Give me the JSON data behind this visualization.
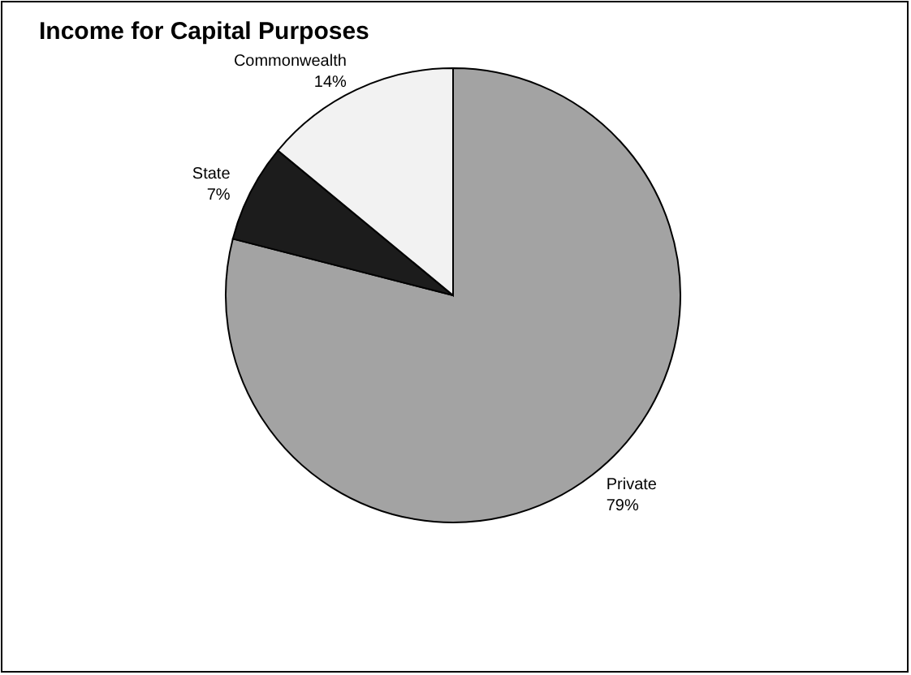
{
  "chart_data": {
    "type": "pie",
    "title": "Income for Capital Purposes",
    "categories": [
      "Private",
      "State",
      "Commonwealth"
    ],
    "values": [
      79,
      7,
      14
    ],
    "value_labels": [
      "79%",
      "7%",
      "14%"
    ],
    "colors": [
      "#a3a3a3",
      "#1c1c1c",
      "#f2f2f2"
    ]
  }
}
